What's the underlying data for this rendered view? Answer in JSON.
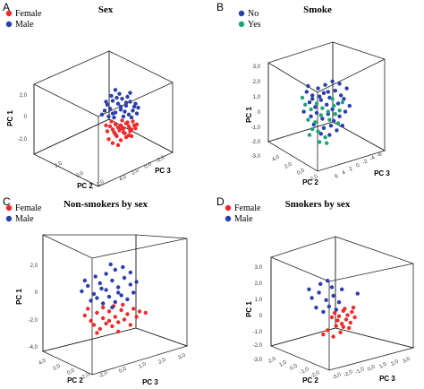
{
  "colors": {
    "red": "#ee2b2b",
    "blue": "#2b3fa8",
    "green": "#1fa37a",
    "back_wall": "#aaaaaa",
    "side_wall": "#8e8e8e",
    "floor": "#c9c9c9"
  },
  "chart_data": [
    {
      "type": "scatter",
      "panel_letter": "A",
      "title": "Sex",
      "axes": {
        "x": "PC 2",
        "y": "PC 1",
        "z": "PC 3"
      },
      "x_ticks": [
        "2,0",
        "0,0",
        "-2,0"
      ],
      "z_ticks": [
        "4,0",
        "2,0",
        "0,0",
        "-2,0"
      ],
      "y_ticks": [
        "2,0",
        "0",
        "-2,0"
      ],
      "legend": [
        {
          "label": "Female",
          "color": "#ee2b2b"
        },
        {
          "label": "Male",
          "color": "#2b3fa8"
        }
      ],
      "series": [
        {
          "name": "Female",
          "points": [
            [
              -0.6,
              -1.0
            ],
            [
              -0.4,
              -1.3
            ],
            [
              -0.2,
              -0.8
            ],
            [
              0.0,
              -1.1
            ],
            [
              0.2,
              -0.9
            ],
            [
              0.4,
              -1.2
            ],
            [
              0.6,
              -0.7
            ],
            [
              0.8,
              -1.0
            ],
            [
              1.0,
              -1.3
            ],
            [
              1.2,
              -0.9
            ],
            [
              -0.8,
              -1.5
            ],
            [
              -0.3,
              -1.6
            ],
            [
              0.1,
              -1.4
            ],
            [
              0.5,
              -1.7
            ],
            [
              0.9,
              -1.5
            ],
            [
              1.3,
              -1.2
            ],
            [
              -0.5,
              -0.5
            ],
            [
              0.3,
              -0.4
            ],
            [
              0.7,
              -0.6
            ],
            [
              1.1,
              -0.5
            ],
            [
              -0.1,
              -2.0
            ],
            [
              0.6,
              -2.1
            ],
            [
              -0.7,
              -2.3
            ],
            [
              0.2,
              -2.4
            ],
            [
              1.0,
              -2.0
            ],
            [
              -0.2,
              -1.8
            ],
            [
              0.4,
              -1.6
            ],
            [
              0.8,
              -1.9
            ],
            [
              -0.4,
              -2.7
            ],
            [
              0.0,
              -2.9
            ],
            [
              1.4,
              -0.8
            ],
            [
              -0.9,
              -0.9
            ],
            [
              0.3,
              -1.2
            ],
            [
              0.9,
              -1.3
            ]
          ]
        },
        {
          "name": "Male",
          "points": [
            [
              -0.8,
              1.2
            ],
            [
              -0.4,
              1.6
            ],
            [
              0.0,
              1.3
            ],
            [
              0.3,
              1.8
            ],
            [
              0.6,
              1.1
            ],
            [
              0.9,
              1.5
            ],
            [
              1.2,
              1.0
            ],
            [
              -1.0,
              0.6
            ],
            [
              -0.6,
              0.8
            ],
            [
              -0.2,
              0.4
            ],
            [
              0.2,
              0.7
            ],
            [
              0.5,
              0.5
            ],
            [
              0.8,
              0.2
            ],
            [
              1.1,
              0.6
            ],
            [
              1.4,
              0.3
            ],
            [
              -0.5,
              2.1
            ],
            [
              0.1,
              2.3
            ],
            [
              0.7,
              2.0
            ],
            [
              -1.2,
              0.2
            ],
            [
              -0.3,
              -0.1
            ],
            [
              0.4,
              0.0
            ],
            [
              1.0,
              -0.1
            ],
            [
              -0.7,
              0.0
            ],
            [
              0.2,
              1.0
            ],
            [
              0.6,
              1.4
            ],
            [
              -0.1,
              1.9
            ],
            [
              1.3,
              1.3
            ],
            [
              -0.9,
              1.5
            ],
            [
              0.9,
              2.4
            ],
            [
              -0.4,
              0.3
            ],
            [
              1.5,
              0.9
            ],
            [
              -0.2,
              2.7
            ]
          ]
        }
      ]
    },
    {
      "type": "scatter",
      "panel_letter": "B",
      "title": "Smoke",
      "axes": {
        "x": "PC 2",
        "y": "PC 1",
        "z": "PC 3"
      },
      "x_ticks": [
        "4,0",
        "2,0",
        "0,0",
        "-2,0"
      ],
      "z_ticks": [
        "6",
        "4",
        "2",
        "0",
        "-2",
        "-4",
        "-6"
      ],
      "y_ticks": [
        "3,0",
        "2,0",
        "1,0",
        "0",
        "-1,0",
        "-2,0",
        "-3,0"
      ],
      "legend": [
        {
          "label": "No",
          "color": "#2b3fa8"
        },
        {
          "label": "Yes",
          "color": "#1fa37a"
        }
      ],
      "series": [
        {
          "name": "No",
          "points": [
            [
              -1.2,
              1.5
            ],
            [
              -0.8,
              1.2
            ],
            [
              -0.4,
              1.8
            ],
            [
              0.0,
              1.4
            ],
            [
              0.4,
              1.0
            ],
            [
              0.8,
              1.6
            ],
            [
              1.2,
              1.2
            ],
            [
              -1.0,
              0.6
            ],
            [
              -0.6,
              0.2
            ],
            [
              -0.2,
              0.8
            ],
            [
              0.2,
              0.4
            ],
            [
              0.6,
              0.0
            ],
            [
              1.0,
              0.5
            ],
            [
              1.4,
              0.9
            ],
            [
              -1.4,
              -0.2
            ],
            [
              -0.9,
              -0.6
            ],
            [
              -0.5,
              -0.3
            ],
            [
              -0.1,
              -0.8
            ],
            [
              0.3,
              -0.4
            ],
            [
              0.7,
              -1.0
            ],
            [
              1.1,
              -0.6
            ],
            [
              1.5,
              -0.2
            ],
            [
              -0.7,
              -1.3
            ],
            [
              0.0,
              -1.6
            ],
            [
              0.5,
              -1.4
            ],
            [
              0.9,
              -1.8
            ],
            [
              -0.3,
              1.1
            ],
            [
              0.1,
              2.1
            ],
            [
              0.6,
              2.4
            ],
            [
              1.6,
              1.8
            ],
            [
              -1.1,
              2.0
            ],
            [
              1.8,
              0.3
            ],
            [
              -0.2,
              -2.1
            ],
            [
              0.4,
              -2.2
            ],
            [
              1.3,
              -1.4
            ],
            [
              -0.8,
              0.9
            ],
            [
              0.3,
              1.5
            ],
            [
              1.1,
              2.2
            ]
          ]
        },
        {
          "name": "Yes",
          "points": [
            [
              -1.3,
              0.4
            ],
            [
              -0.9,
              0.0
            ],
            [
              -0.5,
              0.5
            ],
            [
              -0.1,
              0.1
            ],
            [
              0.3,
              -0.2
            ],
            [
              0.7,
              0.3
            ],
            [
              1.1,
              -0.1
            ],
            [
              -1.1,
              -0.9
            ],
            [
              -0.6,
              -1.1
            ],
            [
              -0.2,
              -0.5
            ],
            [
              0.4,
              -0.9
            ],
            [
              0.8,
              -0.4
            ],
            [
              -0.4,
              -1.9
            ],
            [
              0.1,
              -2.4
            ],
            [
              -0.8,
              -1.7
            ],
            [
              1.3,
              0.6
            ],
            [
              -1.5,
              1.0
            ],
            [
              0.6,
              0.9
            ],
            [
              -0.3,
              -2.8
            ],
            [
              0.2,
              -2.9
            ],
            [
              1.0,
              -1.2
            ],
            [
              -1.0,
              -2.2
            ]
          ]
        }
      ]
    },
    {
      "type": "scatter",
      "panel_letter": "C",
      "title": "Non-smokers by sex",
      "axes": {
        "x": "PC 2",
        "y": "PC 1",
        "z": "PC 3"
      },
      "x_ticks": [
        "4,0",
        "2,0",
        "0,0",
        "-2,0"
      ],
      "z_ticks": [
        "-2,0",
        "0,0",
        "1,0",
        "2,0",
        "3,0"
      ],
      "y_ticks": [
        "2,0",
        "0",
        "-2,0",
        "-4,0"
      ],
      "legend": [
        {
          "label": "Female",
          "color": "#ee2b2b"
        },
        {
          "label": "Male",
          "color": "#2b3fa8"
        }
      ],
      "series": [
        {
          "name": "Female",
          "points": [
            [
              -1.6,
              -1.2
            ],
            [
              -1.2,
              -1.6
            ],
            [
              -0.8,
              -1.0
            ],
            [
              -0.4,
              -1.4
            ],
            [
              0.0,
              -0.9
            ],
            [
              0.4,
              -1.3
            ],
            [
              0.8,
              -0.8
            ],
            [
              1.2,
              -1.1
            ],
            [
              1.6,
              -0.7
            ],
            [
              2.0,
              -0.9
            ],
            [
              -1.0,
              -1.9
            ],
            [
              -0.6,
              -2.2
            ],
            [
              -0.2,
              -1.8
            ],
            [
              0.2,
              -2.0
            ],
            [
              0.6,
              -1.7
            ],
            [
              1.0,
              -1.5
            ],
            [
              1.4,
              -1.9
            ],
            [
              -0.4,
              -0.6
            ],
            [
              0.3,
              -0.5
            ],
            [
              0.9,
              -0.4
            ],
            [
              -1.4,
              -0.7
            ],
            [
              0.6,
              -2.4
            ],
            [
              1.8,
              -1.3
            ],
            [
              -0.8,
              -2.5
            ],
            [
              0.0,
              -1.6
            ],
            [
              2.4,
              -1.0
            ]
          ]
        },
        {
          "name": "Male",
          "points": [
            [
              -1.8,
              0.6
            ],
            [
              -1.4,
              1.0
            ],
            [
              -1.0,
              0.4
            ],
            [
              -0.6,
              1.2
            ],
            [
              -0.2,
              0.7
            ],
            [
              0.2,
              1.4
            ],
            [
              0.6,
              0.9
            ],
            [
              1.0,
              1.6
            ],
            [
              1.4,
              1.1
            ],
            [
              -1.2,
              -0.1
            ],
            [
              -0.8,
              0.1
            ],
            [
              -0.4,
              -0.3
            ],
            [
              0.0,
              0.2
            ],
            [
              0.4,
              -0.2
            ],
            [
              0.8,
              0.3
            ],
            [
              1.2,
              0.0
            ],
            [
              1.6,
              0.5
            ],
            [
              -0.2,
              1.9
            ],
            [
              0.4,
              2.2
            ],
            [
              0.9,
              2.4
            ],
            [
              -0.9,
              1.7
            ],
            [
              1.4,
              2.0
            ],
            [
              -1.6,
              1.4
            ],
            [
              0.1,
              2.6
            ],
            [
              0.6,
              0.5
            ],
            [
              -0.5,
              0.8
            ],
            [
              1.8,
              1.3
            ],
            [
              0.2,
              -0.6
            ]
          ]
        }
      ]
    },
    {
      "type": "scatter",
      "panel_letter": "D",
      "title": "Smokers by sex",
      "axes": {
        "x": "PC 2",
        "y": "PC 1",
        "z": "PC 3"
      },
      "x_ticks": [
        "2,0",
        "1,0",
        "0,0",
        "-1,0",
        "-2,0"
      ],
      "z_ticks": [
        "-3,0",
        "-2,0",
        "-1,0",
        "0,0",
        "1,0",
        "2,0",
        "3,0"
      ],
      "y_ticks": [
        "3,0",
        "2,0",
        "1,0",
        "0",
        "-1,0",
        "-2,0",
        "-3,0"
      ],
      "legend": [
        {
          "label": "Female",
          "color": "#ee2b2b"
        },
        {
          "label": "Male",
          "color": "#2b3fa8"
        }
      ],
      "series": [
        {
          "name": "Female",
          "points": [
            [
              0.2,
              -0.6
            ],
            [
              0.5,
              -0.9
            ],
            [
              0.8,
              -0.4
            ],
            [
              1.1,
              -0.8
            ],
            [
              1.4,
              -0.5
            ],
            [
              0.4,
              -1.3
            ],
            [
              0.7,
              -1.6
            ],
            [
              1.0,
              -1.2
            ],
            [
              1.3,
              -1.5
            ],
            [
              0.0,
              -1.0
            ],
            [
              0.9,
              -0.2
            ],
            [
              1.6,
              -1.0
            ],
            [
              0.3,
              -1.8
            ],
            [
              1.2,
              -2.0
            ],
            [
              -0.3,
              -2.2
            ],
            [
              0.6,
              -2.4
            ],
            [
              1.5,
              -0.1
            ],
            [
              -0.6,
              -2.6
            ],
            [
              0.1,
              -2.8
            ],
            [
              0.8,
              -1.9
            ]
          ]
        },
        {
          "name": "Male",
          "points": [
            [
              -1.4,
              0.8
            ],
            [
              -0.9,
              1.3
            ],
            [
              -0.4,
              0.6
            ],
            [
              0.1,
              1.0
            ],
            [
              0.5,
              0.4
            ],
            [
              -1.1,
              -0.1
            ],
            [
              -0.6,
              -0.5
            ],
            [
              -0.2,
              0.0
            ],
            [
              0.3,
              -0.3
            ],
            [
              -0.8,
              2.1
            ],
            [
              -0.3,
              2.4
            ],
            [
              0.7,
              1.6
            ],
            [
              1.8,
              1.2
            ],
            [
              -1.6,
              1.6
            ],
            [
              0.0,
              1.8
            ]
          ]
        }
      ]
    }
  ]
}
